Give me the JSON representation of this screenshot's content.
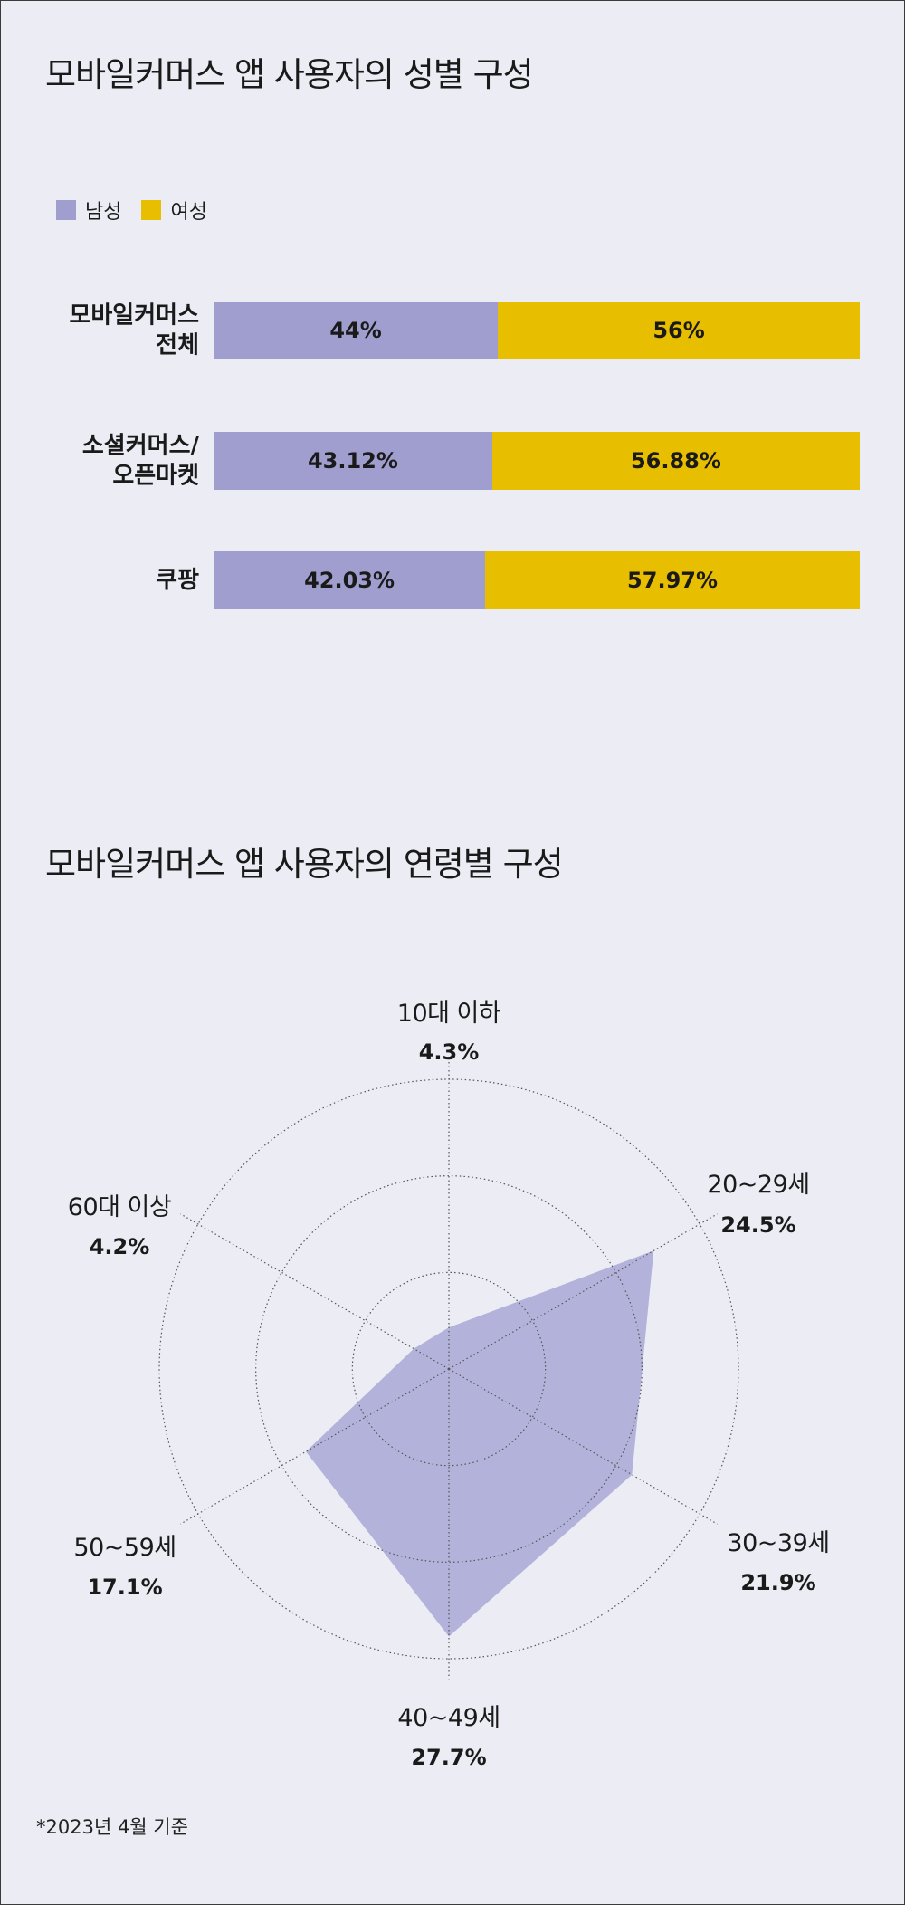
{
  "gender_title": "모바일커머스 앱 사용자의 성별 구성",
  "age_title": "모바일커머스 앱 사용자의 연령별 구성",
  "footnote": "*2023년 4월 기준",
  "colors": {
    "male": "#a09ecf",
    "female": "#e8be00",
    "radar_fill": "#b3b2da",
    "background": "#ececf4"
  },
  "chart_data": [
    {
      "type": "bar",
      "stacked": true,
      "orientation": "horizontal",
      "title": "모바일커머스 앱 사용자의 성별 구성",
      "legend": [
        "남성",
        "여성"
      ],
      "legend_position": "top-left",
      "categories": [
        "모바일커머스\n전체",
        "소셜커머스/\n오픈마켓",
        "쿠팡"
      ],
      "series": [
        {
          "name": "남성",
          "values": [
            44,
            43.12,
            42.03
          ],
          "labels": [
            "44%",
            "43.12%",
            "42.03%"
          ]
        },
        {
          "name": "여성",
          "values": [
            56,
            56.88,
            57.97
          ],
          "labels": [
            "56%",
            "56.88%",
            "57.97%"
          ]
        }
      ],
      "xlim": [
        0,
        100
      ]
    },
    {
      "type": "radar",
      "title": "모바일커머스 앱 사용자의 연령별 구성",
      "categories": [
        "10대 이하",
        "20~29세",
        "30~39세",
        "40~49세",
        "50~59세",
        "60대 이상"
      ],
      "values": [
        4.3,
        24.5,
        21.9,
        27.7,
        17.1,
        4.2
      ],
      "value_labels": [
        "4.3%",
        "24.5%",
        "21.9%",
        "27.7%",
        "17.1%",
        "4.2%"
      ],
      "rlim": [
        0,
        30
      ],
      "grid_rings": [
        10,
        20,
        30
      ]
    }
  ]
}
